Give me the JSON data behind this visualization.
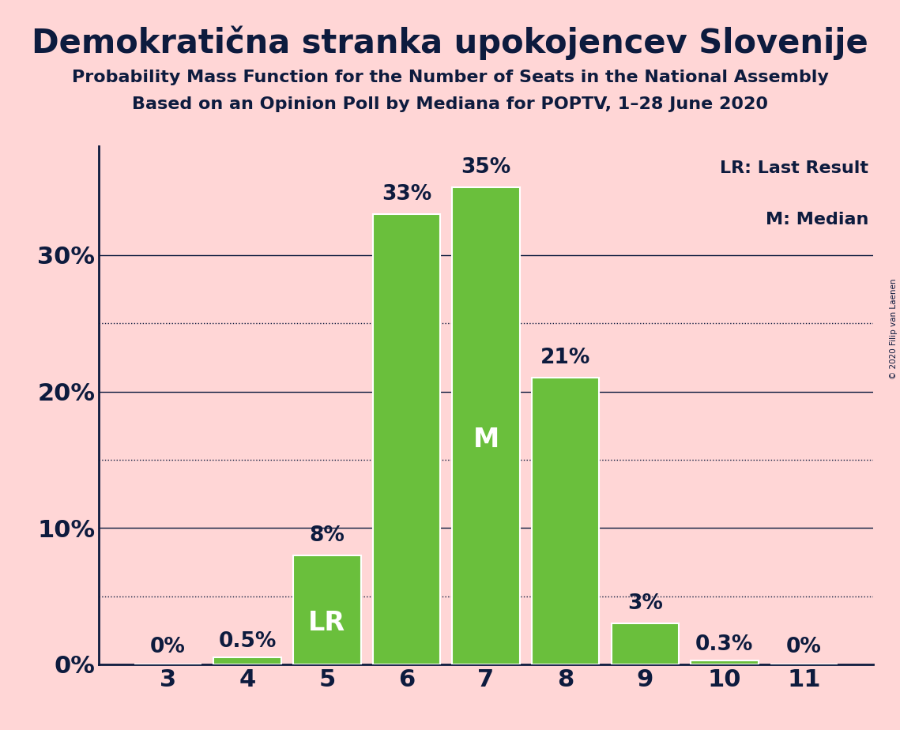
{
  "title": "Demokratična stranka upokojencev Slovenije",
  "subtitle1": "Probability Mass Function for the Number of Seats in the National Assembly",
  "subtitle2": "Based on an Opinion Poll by Mediana for POPTV, 1–28 June 2020",
  "copyright": "© 2020 Filip van Laenen",
  "categories": [
    3,
    4,
    5,
    6,
    7,
    8,
    9,
    10,
    11
  ],
  "values": [
    0.0,
    0.5,
    8.0,
    33.0,
    35.0,
    21.0,
    3.0,
    0.3,
    0.0
  ],
  "bar_color": "#6abf3c",
  "bar_edge_color": "#ffffff",
  "background_color": "#ffd6d6",
  "text_color": "#0d1b3e",
  "grid_color": "#0d1b3e",
  "ylim": [
    0,
    38
  ],
  "yticks": [
    0,
    10,
    20,
    30
  ],
  "dotted_lines": [
    5,
    15,
    25
  ],
  "lr_bar": 5,
  "median_bar": 7,
  "bar_labels": [
    "0%",
    "0.5%",
    "8%",
    "33%",
    "35%",
    "21%",
    "3%",
    "0.3%",
    "0%"
  ],
  "legend_lr": "LR: Last Result",
  "legend_m": "M: Median",
  "title_fontsize": 30,
  "subtitle_fontsize": 16,
  "axis_fontsize": 22,
  "bar_label_fontsize": 19,
  "lr_m_fontsize": 24
}
